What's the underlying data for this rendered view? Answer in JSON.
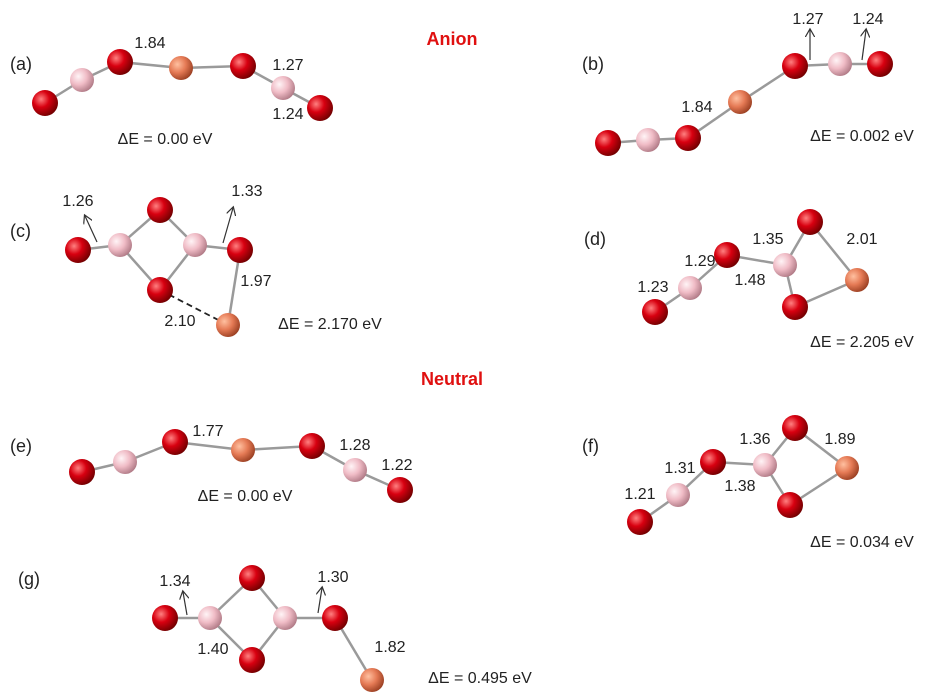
{
  "sections": {
    "anion": "Anion",
    "neutral": "Neutral"
  },
  "panels": [
    {
      "label": "(a)",
      "bonds": [
        "1.84",
        "1.27",
        "1.24"
      ],
      "energy": "ΔE = 0.00 eV"
    },
    {
      "label": "(b)",
      "bonds": [
        "1.27",
        "1.24",
        "1.84"
      ],
      "energy": "ΔE = 0.002 eV"
    },
    {
      "label": "(c)",
      "bonds": [
        "1.26",
        "1.33",
        "1.97",
        "2.10"
      ],
      "energy": "ΔE = 2.170 eV"
    },
    {
      "label": "(d)",
      "bonds": [
        "1.35",
        "2.01",
        "1.29",
        "1.23",
        "1.48"
      ],
      "energy": "ΔE = 2.205 eV"
    },
    {
      "label": "(e)",
      "bonds": [
        "1.77",
        "1.28",
        "1.22"
      ],
      "energy": "ΔE = 0.00 eV"
    },
    {
      "label": "(f)",
      "bonds": [
        "1.36",
        "1.89",
        "1.31",
        "1.21",
        "1.38"
      ],
      "energy": "ΔE = 0.034 eV"
    },
    {
      "label": "(g)",
      "bonds": [
        "1.34",
        "1.30",
        "1.40",
        "1.82"
      ],
      "energy": "ΔE = 0.495 eV"
    }
  ]
}
